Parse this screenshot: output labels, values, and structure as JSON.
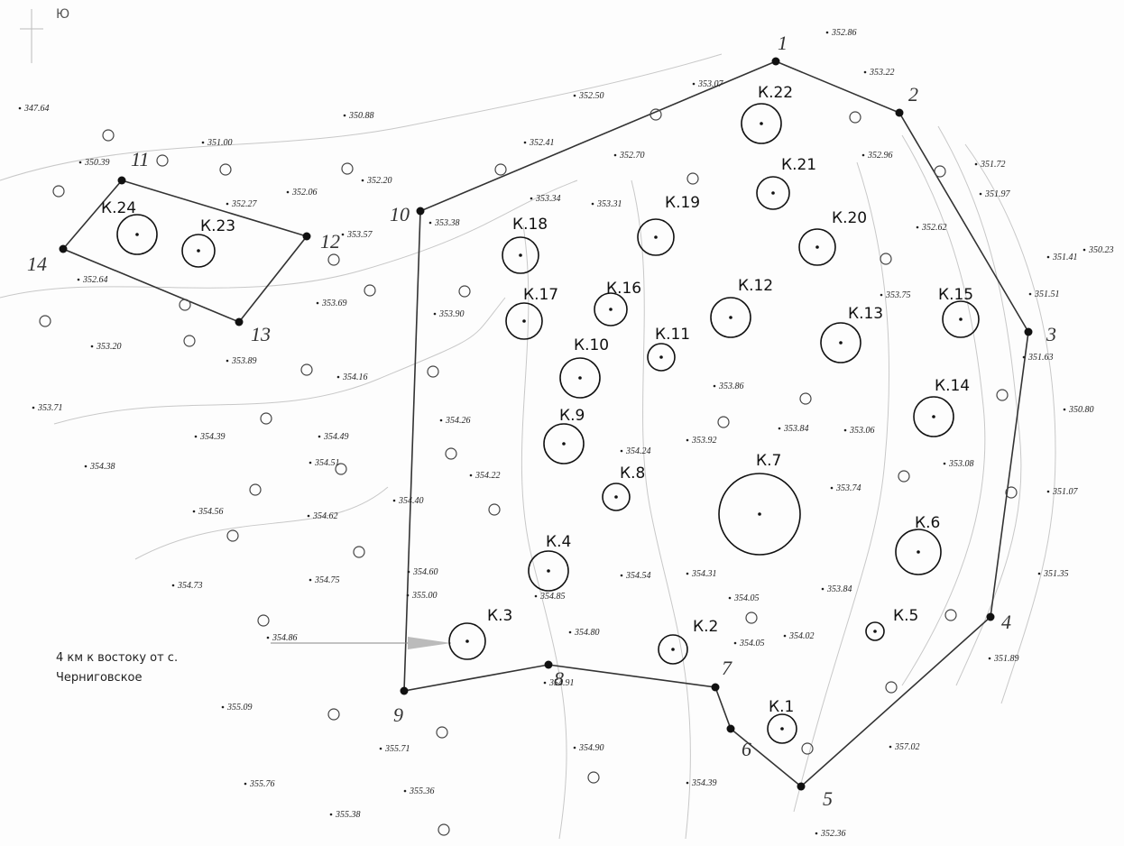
{
  "map": {
    "compass_label": "Ю",
    "caption": [
      "4 км к востоку от с.",
      "Черниговское"
    ],
    "boundary_points": [
      "1",
      "2",
      "3",
      "4",
      "5",
      "6",
      "7",
      "8",
      "9",
      "10",
      "11",
      "12",
      "13",
      "14"
    ],
    "mounds": [
      "К.1",
      "К.2",
      "К.3",
      "К.4",
      "К.5",
      "К.6",
      "К.7",
      "К.8",
      "К.9",
      "К.10",
      "К.11",
      "К.12",
      "К.13",
      "К.14",
      "К.15",
      "К.16",
      "К.17",
      "К.18",
      "К.19",
      "К.20",
      "К.21",
      "К.22",
      "К.23",
      "К.24"
    ],
    "spot_heights": [
      "352.86",
      "353.22",
      "352.50",
      "353.07",
      "347.64",
      "350.88",
      "351.00",
      "352.41",
      "352.70",
      "352.96",
      "351.72",
      "350.39",
      "352.20",
      "352.06",
      "352.27",
      "351.97",
      "353.34",
      "353.31",
      "353.38",
      "353.57",
      "352.62",
      "350.23",
      "351.41",
      "352.64",
      "351.51",
      "353.69",
      "353.90",
      "353.75",
      "353.20",
      "353.89",
      "351.63",
      "354.16",
      "353.86",
      "350.80",
      "353.71",
      "354.26",
      "353.84",
      "353.06",
      "353.92",
      "354.39",
      "354.49",
      "354.24",
      "353.08",
      "354.38",
      "354.51",
      "354.22",
      "353.74",
      "351.07",
      "354.40",
      "354.56",
      "354.62",
      "354.54",
      "354.31",
      "351.35",
      "354.73",
      "354.75",
      "354.60",
      "355.00",
      "354.85",
      "353.84",
      "354.05",
      "354.80",
      "354.02",
      "354.05",
      "351.89",
      "354.86",
      "355.09",
      "354.91",
      "357.02",
      "355.71",
      "354.90",
      "355.76",
      "355.36",
      "354.39",
      "355.38",
      "352.36"
    ]
  }
}
